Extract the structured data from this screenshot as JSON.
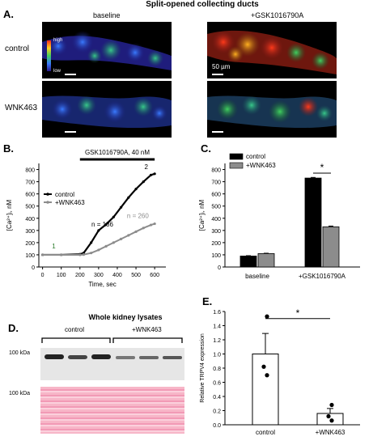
{
  "panelA": {
    "letter": "A.",
    "title": "Split-opened collecting ducts",
    "col_baseline": "baseline",
    "col_treat": "+GSK1016790A",
    "row_control": "control",
    "row_wnk": "WNK463",
    "colorbar_high": "high",
    "colorbar_low": "low",
    "scale_label": "50 µm"
  },
  "panelB": {
    "letter": "B.",
    "stim_label": "GSK1016790A, 40 nM",
    "ylabel": "[Ca²⁺]ᵢ, nM",
    "xlabel": "Time, sec",
    "legend": [
      "control",
      "+WNK463"
    ],
    "n_control": "n = 186",
    "n_wnk": "n = 260",
    "mark1": "1",
    "mark2": "2"
  },
  "panelC": {
    "letter": "C.",
    "ylabel": "[Ca²⁺]ᵢ, nM",
    "legend": [
      "control",
      "+WNK463"
    ],
    "star": "*",
    "groups": [
      "baseline",
      "+GSK1016790A"
    ]
  },
  "panelD": {
    "letter": "D.",
    "title": "Whole kidney lysates",
    "group_control": "control",
    "group_wnk": "+WNK463",
    "mw_top": "100 kDa",
    "mw_bottom": "100 kDa"
  },
  "panelE": {
    "letter": "E.",
    "ylabel": "Relative TRPV4 expression",
    "star": "*",
    "groups": [
      "control",
      "+WNK463"
    ]
  },
  "chart_data": [
    {
      "type": "line",
      "panel": "B",
      "xlabel": "Time, sec",
      "ylabel": "[Ca²⁺]ᵢ, nM",
      "xlim": [
        -20,
        660
      ],
      "ylim": [
        0,
        850
      ],
      "xticks": [
        0,
        100,
        200,
        300,
        400,
        500,
        600
      ],
      "yticks": [
        0,
        100,
        200,
        300,
        400,
        500,
        600,
        700,
        800
      ],
      "series": [
        {
          "name": "control",
          "color": "#000000",
          "x": [
            0,
            100,
            200,
            220,
            260,
            300,
            340,
            380,
            420,
            460,
            500,
            540,
            580,
            600
          ],
          "y": [
            100,
            100,
            105,
            115,
            200,
            300,
            350,
            410,
            490,
            570,
            640,
            700,
            755,
            765
          ]
        },
        {
          "name": "+WNK463",
          "color": "#8c8c8c",
          "x": [
            0,
            100,
            200,
            220,
            260,
            300,
            340,
            380,
            420,
            460,
            500,
            540,
            580,
            600
          ],
          "y": [
            100,
            100,
            100,
            102,
            115,
            140,
            170,
            200,
            230,
            260,
            290,
            320,
            345,
            355
          ]
        }
      ]
    },
    {
      "type": "bar",
      "panel": "C",
      "ylabel": "[Ca²⁺]ᵢ, nM",
      "ylim": [
        0,
        850
      ],
      "yticks": [
        0,
        100,
        200,
        300,
        400,
        500,
        600,
        700,
        800
      ],
      "categories": [
        "baseline",
        "+GSK1016790A"
      ],
      "series": [
        {
          "name": "control",
          "color": "#000000",
          "values": [
            90,
            730
          ],
          "errors": [
            3,
            5
          ]
        },
        {
          "name": "+WNK463",
          "color": "#8c8c8c",
          "values": [
            110,
            330
          ],
          "errors": [
            3,
            6
          ]
        }
      ]
    },
    {
      "type": "bar",
      "panel": "E",
      "ylabel": "Relative TRPV4 expression",
      "ylim": [
        0,
        1.6
      ],
      "yticks": [
        0.0,
        0.2,
        0.4,
        0.6,
        0.8,
        1.0,
        1.2,
        1.4,
        1.6
      ],
      "categories": [
        "control",
        "+WNK463"
      ],
      "values": [
        1.0,
        0.16
      ],
      "errors": [
        0.29,
        0.07
      ],
      "points": [
        [
          1.53,
          0.82,
          0.7
        ],
        [
          0.28,
          0.12,
          0.06
        ]
      ]
    }
  ]
}
